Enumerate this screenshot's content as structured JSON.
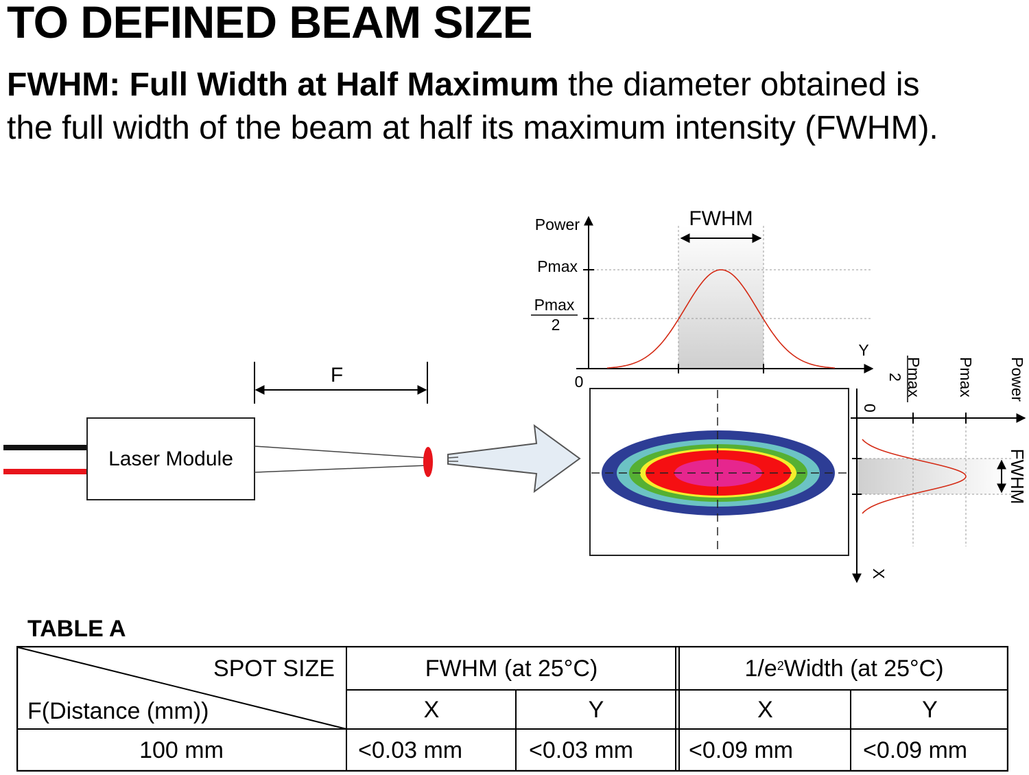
{
  "header": {
    "title": "TO DEFINED BEAM SIZE",
    "desc_bold": "FWHM: Full Width at Half Maximum",
    "desc_rest": " the diameter obtained is",
    "desc_line2": "the full width of the beam at half its maximum intensity (FWHM)."
  },
  "diagram": {
    "laser_module_label": "Laser Module",
    "distance_label": "F",
    "top_plot": {
      "power_label": "Power",
      "pmax_label": "Pmax",
      "pmax_half_numerator": "Pmax",
      "pmax_half_denominator": "2",
      "fwhm_label": "FWHM",
      "axis_label": "Y",
      "origin_label": "0"
    },
    "side_plot": {
      "power_label": "Power",
      "pmax_label": "Pmax",
      "pmax_half_numerator": "Pmax",
      "pmax_half_denominator": "2",
      "fwhm_label": "FWHM",
      "axis_label": "X",
      "origin_label": "0"
    },
    "colors": {
      "wire_black": "#111111",
      "wire_red": "#e8141b",
      "spot_red": "#e8141b",
      "curve": "#d42a14",
      "ring_blue": "#2d3d95",
      "ring_teal": "#6cc3c4",
      "ring_green": "#55b033",
      "ring_yellow": "#f4ee2c",
      "ring_red": "#f50f12",
      "ring_magenta": "#e6268e",
      "arrow_fill": "#e4ecf4"
    }
  },
  "table": {
    "caption": "TABLE A",
    "header_spot": "SPOT SIZE",
    "header_distance": "F(Distance (mm))",
    "group1": "FWHM (at 25°C)",
    "group2_prefix": "1/e",
    "group2_sup": "2",
    "group2_suffix": " Width (at 25°C)",
    "sub_x": "X",
    "sub_y": "Y",
    "row": {
      "distance": "100 mm",
      "fwhm_x": "<0.03 mm",
      "fwhm_y": "<0.03 mm",
      "e2_x": "<0.09 mm",
      "e2_y": "<0.09 mm"
    }
  }
}
